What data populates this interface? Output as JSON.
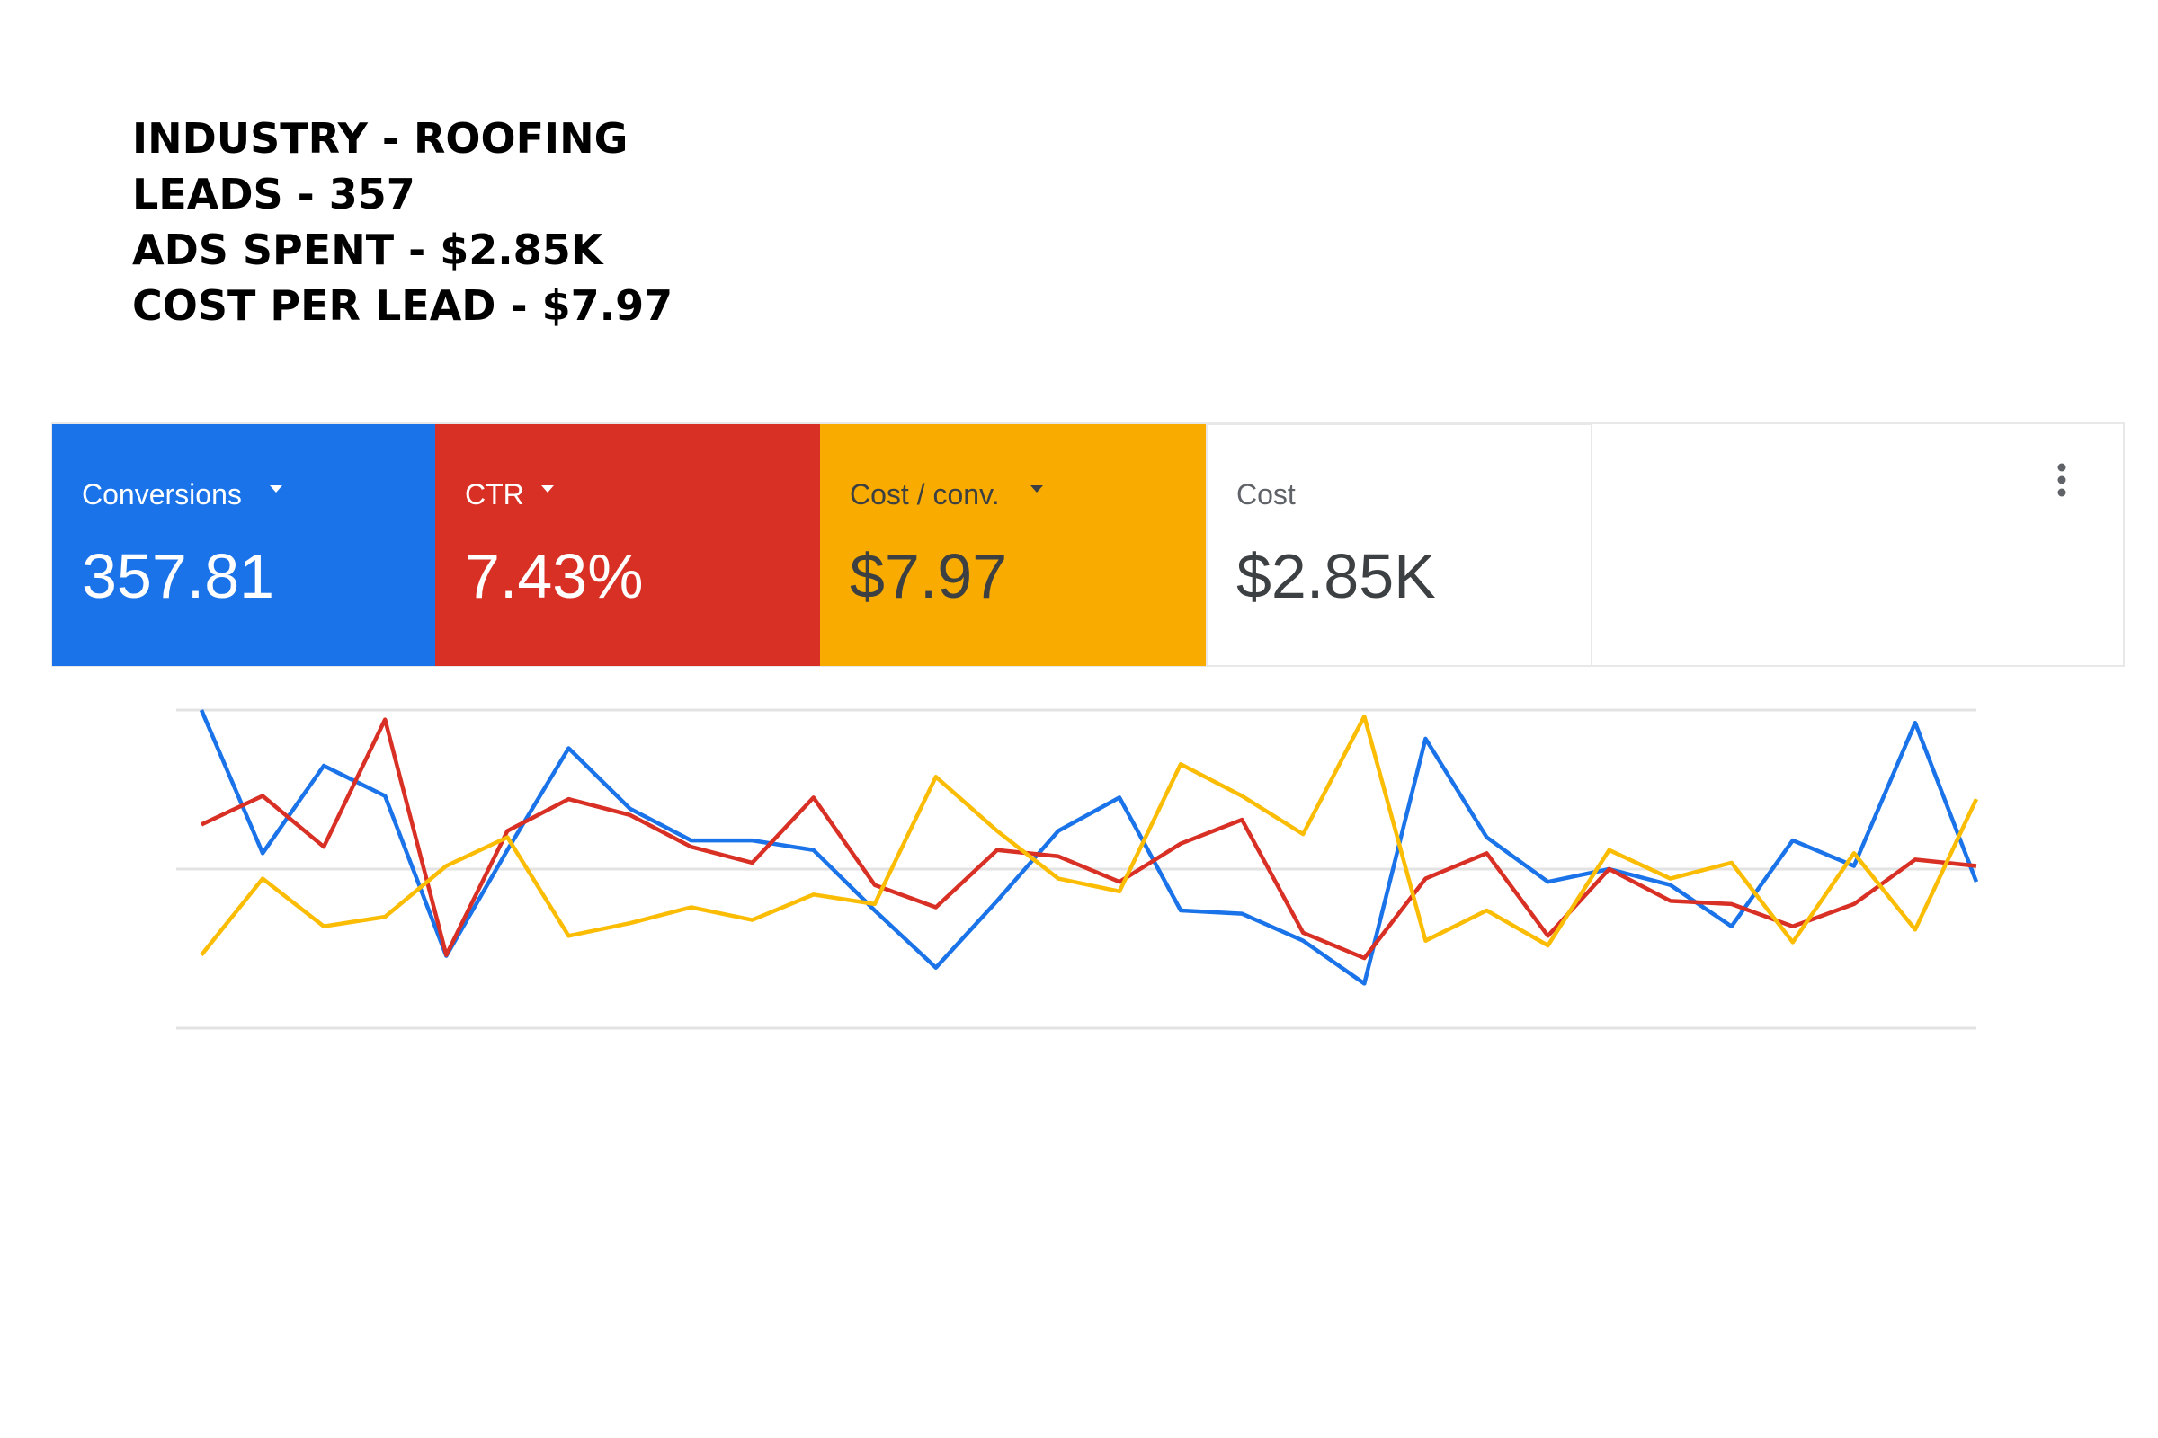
{
  "header": {
    "lines": [
      "INDUSTRY - ROOFING",
      "LEADS - 357",
      "ADS SPENT - $2.85K",
      "COST PER LEAD - $7.97"
    ]
  },
  "metrics": [
    {
      "label": "Conversions",
      "value": "357.81",
      "color": "#1a73e8"
    },
    {
      "label": "CTR",
      "value": "7.43%",
      "color": "#d93025"
    },
    {
      "label": "Cost / conv.",
      "value": "$7.97",
      "color": "#f9ab00"
    },
    {
      "label": "Cost",
      "value": "$2.85K",
      "color": "#ffffff"
    }
  ],
  "chart_data": {
    "type": "line",
    "ylim": [
      0,
      100
    ],
    "yticks": [
      0,
      50,
      100
    ],
    "grid": true,
    "series": [
      {
        "color": "#1a73e8",
        "values": [
          100,
          55,
          82.5,
          73,
          22.7,
          56,
          88,
          69,
          59,
          59,
          56,
          37,
          19,
          40,
          62,
          72.5,
          37,
          36,
          27.5,
          14,
          91,
          60,
          46,
          50,
          45,
          32,
          59,
          51,
          96,
          46
        ]
      },
      {
        "color": "#d93025",
        "values": [
          64,
          73,
          57,
          97,
          23,
          62,
          72,
          67,
          57,
          52,
          72.5,
          45,
          38,
          56,
          54,
          46,
          58,
          65.5,
          30,
          22,
          47,
          55,
          29,
          50,
          40,
          39,
          32,
          39,
          53,
          51
        ]
      },
      {
        "color": "#fbbc04",
        "values": [
          23,
          47,
          32,
          35,
          51,
          60,
          29,
          33,
          38,
          34,
          42,
          39,
          79,
          62,
          47,
          43,
          83,
          73,
          61,
          98,
          27.5,
          37,
          26,
          56,
          47,
          52,
          27,
          55,
          31,
          72
        ]
      }
    ]
  }
}
